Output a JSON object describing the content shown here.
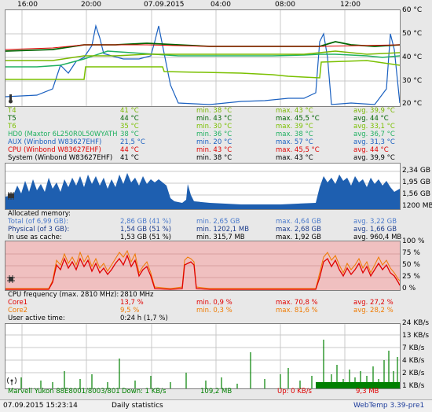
{
  "time_axis": {
    "labels": [
      "16:00",
      "20:00",
      "07.09.2015",
      "04:00",
      "08:00",
      "12:00"
    ]
  },
  "temp_panel": {
    "y_labels": [
      "60 °C",
      "50 °C",
      "40 °C",
      "30 °C",
      "20 °C"
    ],
    "rows": [
      {
        "name": "T4",
        "cur": "41 °C",
        "min": "min. 38 °C",
        "max": "max. 43 °C",
        "avg": "avg. 39,9 °C",
        "color": "#7ab800"
      },
      {
        "name": "T5",
        "cur": "44 °C",
        "min": "min. 43 °C",
        "max": "max. 45,5 °C",
        "avg": "avg. 44 °C",
        "color": "#006400"
      },
      {
        "name": "T6",
        "cur": "35 °C",
        "min": "min. 30 °C",
        "max": "max. 39 °C",
        "avg": "avg. 33,1 °C",
        "color": "#7ac000"
      },
      {
        "name": "HD0 (Maxtor 6L250R0L50WYATH",
        "cur": "38 °C",
        "min": "min. 36 °C",
        "max": "max. 38 °C",
        "avg": "avg. 36,7 °C",
        "color": "#20b060"
      },
      {
        "name": "AUX (Winbond W83627EHF)",
        "cur": "21,5 °C",
        "min": "min. 20 °C",
        "max": "max. 57 °C",
        "avg": "avg. 31,3 °C",
        "color": "#1a60c0"
      },
      {
        "name": "CPU (Winbond W83627EHF)",
        "cur": "44 °C",
        "min": "min. 43 °C",
        "max": "max. 45,5 °C",
        "avg": "avg. 44 °C",
        "color": "#e00000"
      },
      {
        "name": "System (Winbond W83627EHF)",
        "cur": "41 °C",
        "min": "min. 38 °C",
        "max": "max. 43 °C",
        "avg": "avg. 39,9 °C",
        "color": "#000000"
      }
    ]
  },
  "mem_panel": {
    "y_labels": [
      "2,34 GB",
      "1,95 GB",
      "1,56 GB",
      "1200 MB"
    ],
    "title": "Allocated memory:",
    "rows": [
      {
        "name": "Total (of 6,99 GB):",
        "cur": "2,86 GB (41 %)",
        "min": "min. 2,65 GB",
        "max": "max. 4,64 GB",
        "avg": "avg. 3,22 GB",
        "color": "#4a7acc"
      },
      {
        "name": "Physical (of 3 GB):",
        "cur": "1,54 GB (51 %)",
        "min": "min. 1202,1 MB",
        "max": "max. 2,68 GB",
        "avg": "avg. 1,66 GB",
        "color": "#1a3a8a"
      },
      {
        "name": "In use as cache:",
        "cur": "1,53 GB (51 %)",
        "min": "min. 315,7 MB",
        "max": "max. 1,92 GB",
        "avg": "avg. 960,4 MB",
        "color": "#000000"
      }
    ]
  },
  "cpu_panel": {
    "y_labels": [
      "100 %",
      "75 %",
      "50 %",
      "25 %",
      "0 %"
    ],
    "freq_label": "CPU frequency (max. 2810 MHz):",
    "freq_value": "2810 MHz",
    "rows": [
      {
        "name": "Core1",
        "cur": "13,7 %",
        "min": "min. 0,9 %",
        "max": "max. 70,8 %",
        "avg": "avg. 27,2 %",
        "color": "#e00000"
      },
      {
        "name": "Core2",
        "cur": "9,5 %",
        "min": "min. 0,3 %",
        "max": "max. 81,6 %",
        "avg": "avg. 28,2 %",
        "color": "#f07a00"
      }
    ],
    "user_label": "User active time:",
    "user_value": "0:24 h (1,7 %)"
  },
  "net_panel": {
    "y_labels": [
      "24 KB/s",
      "13 KB/s",
      "7 KB/s",
      "4 KB/s",
      "2 KB/s",
      "1 KB/s"
    ],
    "adapter": "Marvell Yukon 88E8001/8003/801",
    "down_label": "Down: 1 KB/s",
    "down_total": "109,2 MB",
    "up_label": "Up: 0 KB/s",
    "up_total": "9,3 MB"
  },
  "footer": {
    "datetime": "07.09.2015 15:23:14",
    "stats_link": "Daily statistics",
    "version": "WebTemp 3.39-pre1"
  },
  "colors": {
    "temp_bg": "#ffffff",
    "mem_fill": "#1e5fb0",
    "cpu_bg": "#f0c0c0",
    "net_bar": "#008000"
  }
}
